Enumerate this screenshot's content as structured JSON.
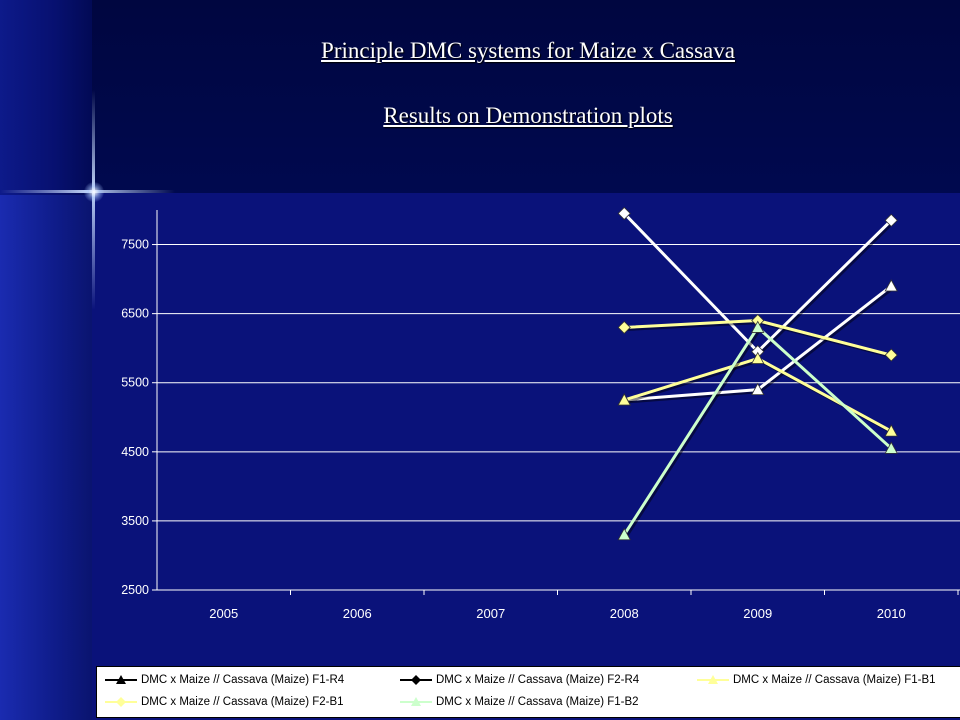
{
  "slide": {
    "title": "Principle DMC systems for Maize x Cassava",
    "subtitle": "Results on Demonstration plots"
  },
  "chart_data": {
    "type": "line",
    "categories": [
      "2005",
      "2006",
      "2007",
      "2008",
      "2009",
      "2010"
    ],
    "ylim": [
      2500,
      8000
    ],
    "yticks": [
      2500,
      3500,
      4500,
      5500,
      6500,
      7500
    ],
    "ytick_labels": [
      "2500",
      "3500",
      "4500",
      "5500",
      "6500",
      "7500"
    ],
    "grid": "horizontal",
    "legend_position": "bottom",
    "series": [
      {
        "name": "DMC x Maize // Cassava (Maize) F1-R4",
        "values": [
          null,
          null,
          null,
          5250,
          5400,
          6900
        ],
        "color": "#ffffff",
        "marker": "triangle"
      },
      {
        "name": "DMC x Maize // Cassava (Maize) F2-R4",
        "values": [
          null,
          null,
          null,
          7950,
          5950,
          7850
        ],
        "color": "#ffffff",
        "marker": "diamond"
      },
      {
        "name": "DMC x Maize // Cassava (Maize) F1-B1",
        "values": [
          null,
          null,
          null,
          5250,
          5850,
          4800
        ],
        "color": "#ffff99",
        "marker": "triangle"
      },
      {
        "name": "DMC x Maize // Cassava (Maize) F2-B1",
        "values": [
          null,
          null,
          null,
          6300,
          6400,
          5900
        ],
        "color": "#ffff99",
        "marker": "diamond"
      },
      {
        "name": "DMC x Maize // Cassava (Maize) F1-B2",
        "values": [
          null,
          null,
          null,
          3300,
          6300,
          4550
        ],
        "color": "#ccffcc",
        "marker": "triangle"
      }
    ]
  }
}
